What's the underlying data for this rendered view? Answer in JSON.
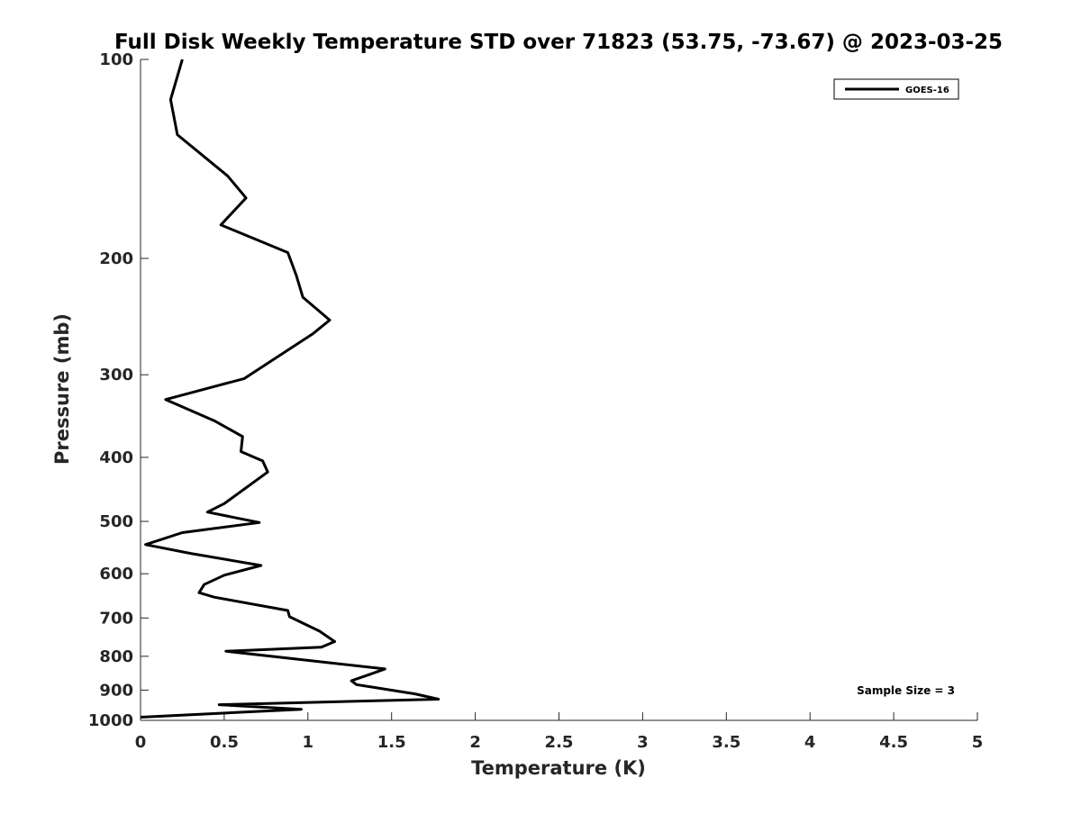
{
  "chart_data": {
    "type": "line",
    "title": "Full Disk Weekly Temperature STD over 71823 (53.75, -73.67) @ 2023-03-25",
    "xlabel": "Temperature (K)",
    "ylabel": "Pressure (mb)",
    "xlim": [
      0,
      5
    ],
    "ylim": [
      100,
      1000
    ],
    "y_scale": "log",
    "y_reversed": true,
    "grid": false,
    "legend_position": "top-right",
    "x_ticks": [
      0,
      0.5,
      1,
      1.5,
      2,
      2.5,
      3,
      3.5,
      4,
      4.5,
      5
    ],
    "x_tick_labels": [
      "0",
      "0.5",
      "1",
      "1.5",
      "2",
      "2.5",
      "3",
      "3.5",
      "4",
      "4.5",
      "5"
    ],
    "y_ticks": [
      100,
      200,
      300,
      400,
      500,
      600,
      700,
      800,
      900,
      1000
    ],
    "y_tick_labels": [
      "100",
      "200",
      "300",
      "400",
      "500",
      "600",
      "700",
      "800",
      "900",
      "1000"
    ],
    "annotation": "Sample Size = 3",
    "line_color": "#000000",
    "series": [
      {
        "name": "GOES-16",
        "x": [
          0.25,
          0.18,
          0.22,
          0.52,
          0.63,
          0.48,
          0.88,
          0.93,
          0.97,
          1.13,
          1.03,
          0.62,
          0.15,
          0.44,
          0.61,
          0.6,
          0.73,
          0.76,
          0.5,
          0.4,
          0.71,
          0.25,
          0.03,
          0.3,
          0.72,
          0.5,
          0.38,
          0.35,
          0.44,
          0.88,
          0.89,
          1.07,
          1.16,
          1.08,
          0.51,
          1.46,
          1.37,
          1.26,
          1.29,
          1.64,
          1.78,
          0.47,
          0.96,
          0.0
        ],
        "y": [
          100,
          115,
          130,
          150,
          162,
          178,
          196,
          212,
          229,
          248,
          260,
          304,
          327,
          352,
          372,
          392,
          405,
          421,
          470,
          484,
          502,
          520,
          542,
          559,
          583,
          603,
          623,
          641,
          651,
          682,
          697,
          733,
          760,
          775,
          786,
          836,
          852,
          871,
          883,
          912,
          929,
          947,
          962,
          989
        ]
      }
    ]
  }
}
